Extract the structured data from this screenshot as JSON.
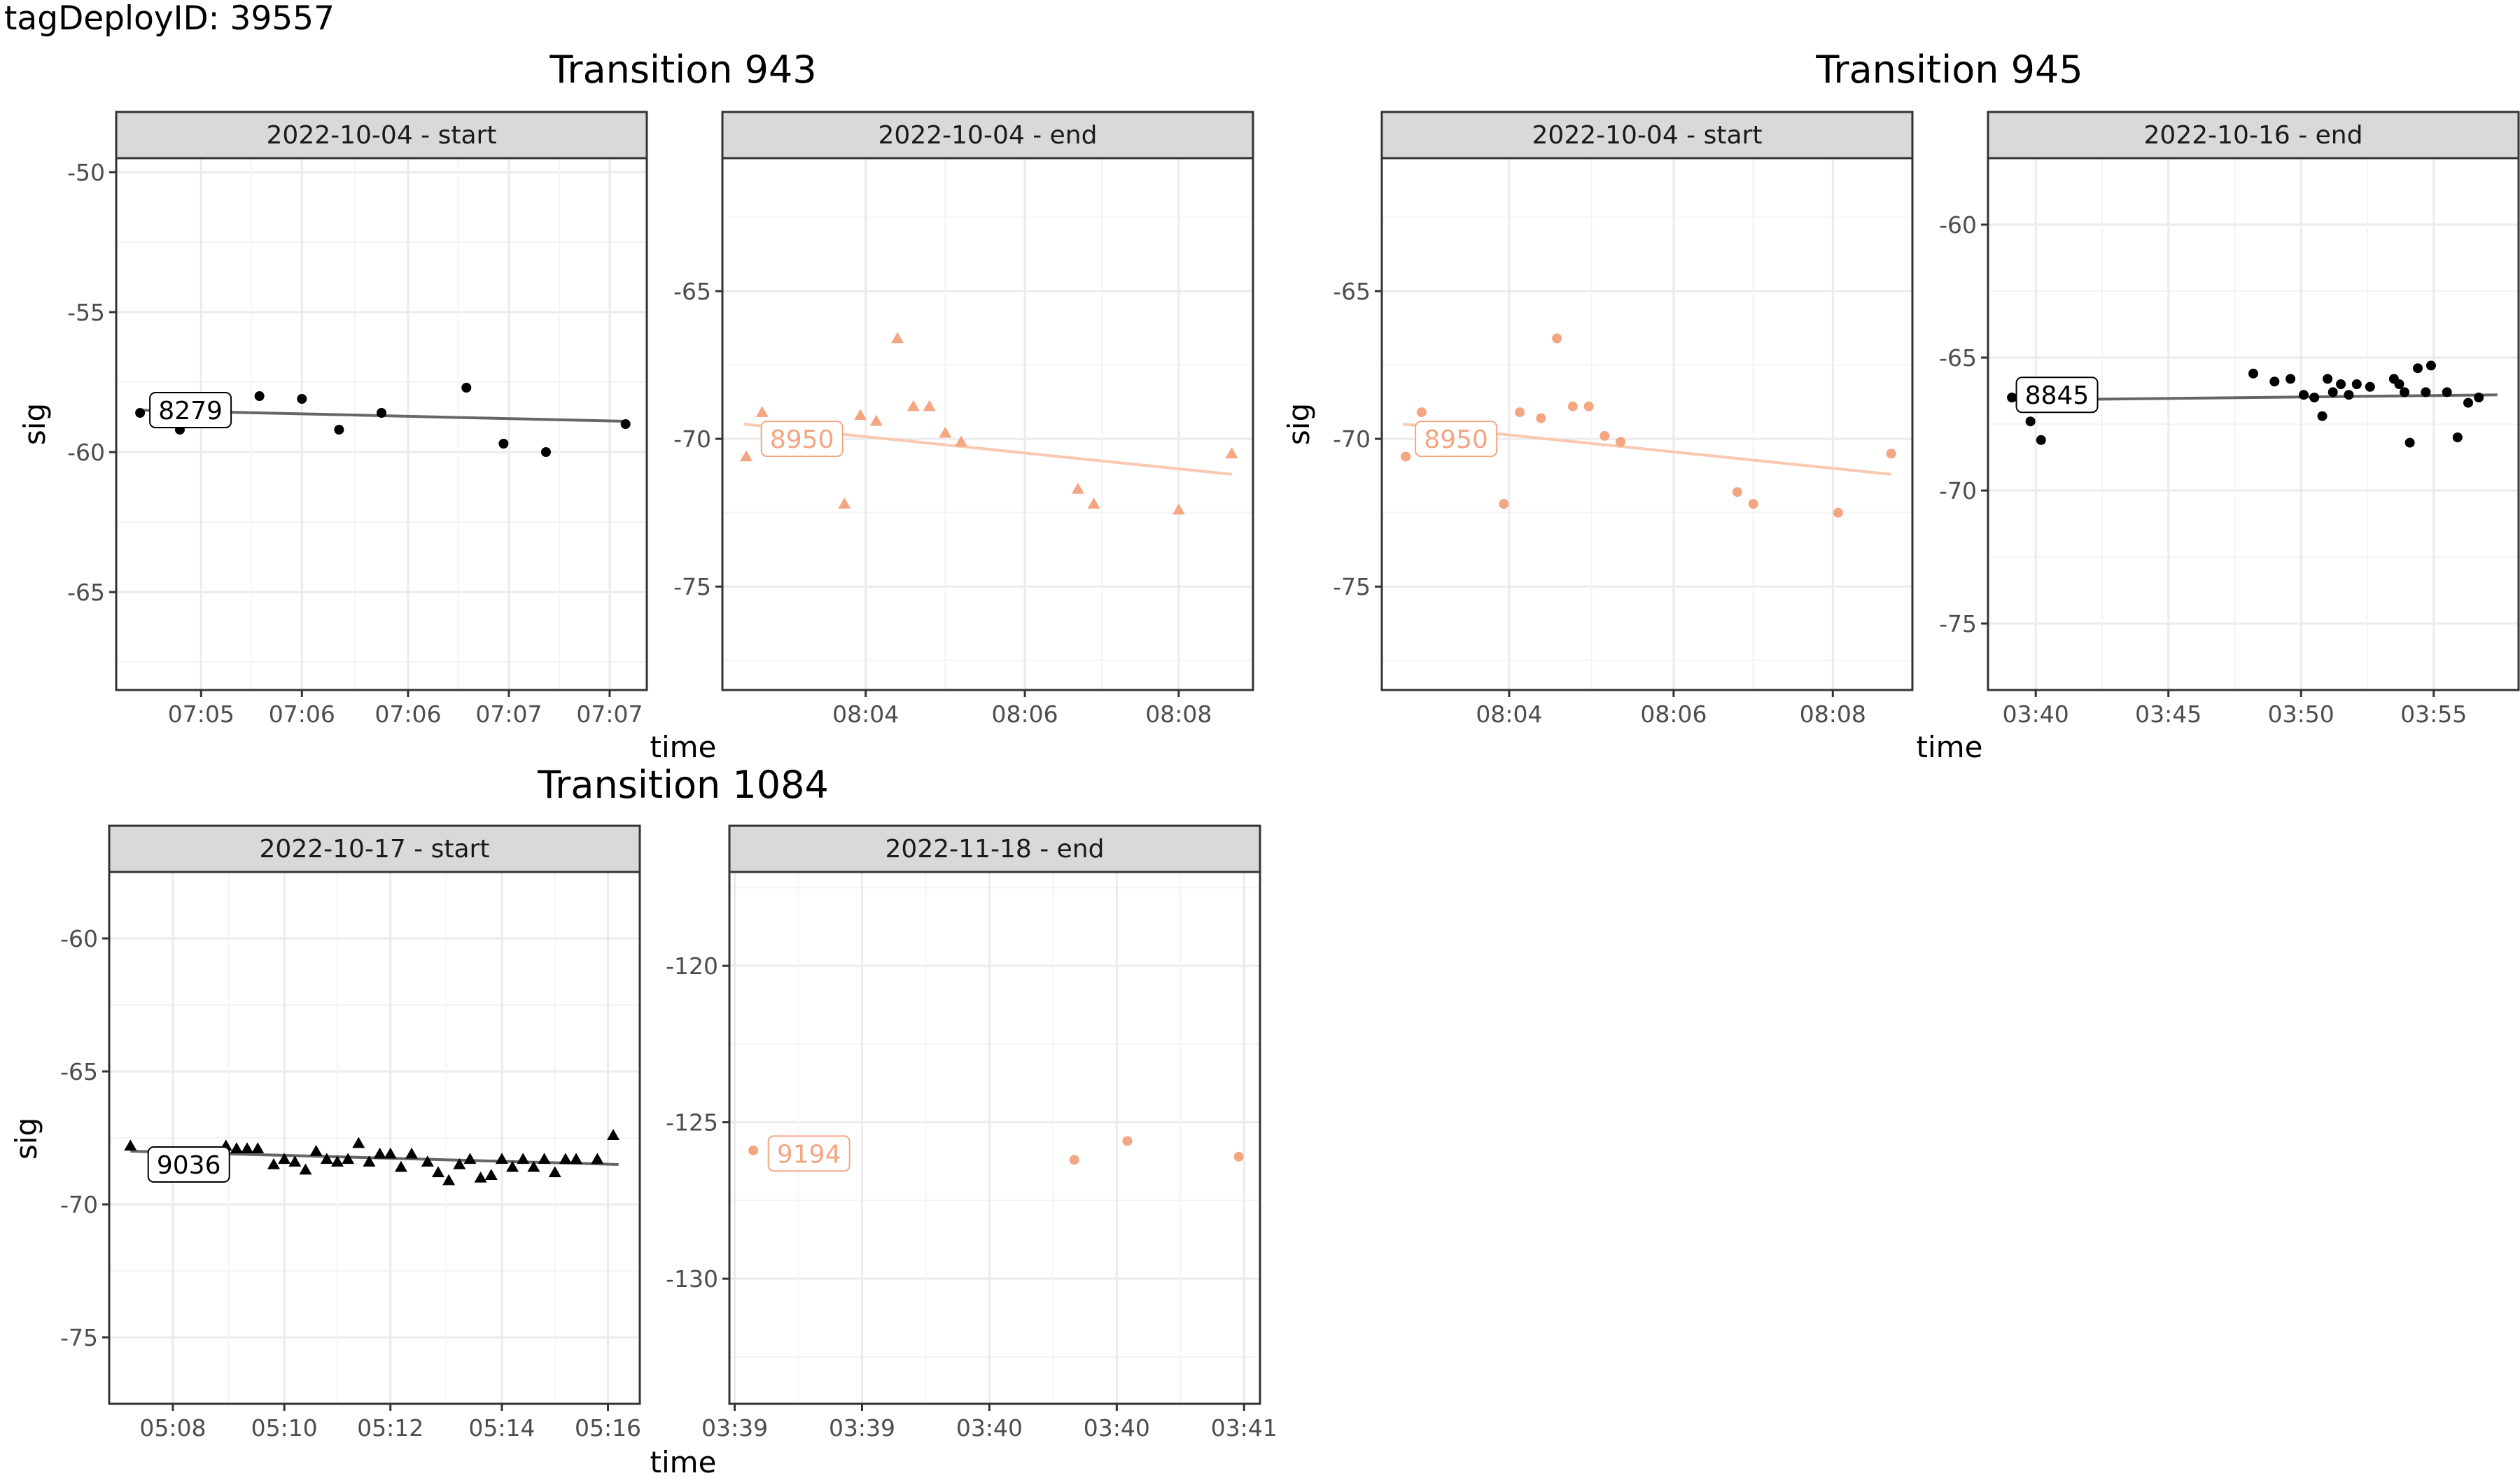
{
  "header": {
    "title": "tagDeployID: 39557"
  },
  "colors": {
    "black": "#000000",
    "orange": "#f4a582",
    "orange_line": "#f8c8b0",
    "strip_bg": "#d9d9d9",
    "grid": "#ebebeb"
  },
  "chart_data": [
    {
      "type": "scatter",
      "group_title": "Transition 943",
      "ylabel": "sig",
      "xlabel": "time",
      "panels": [
        {
          "strip": "2022-10-04 - start",
          "color": "black",
          "shape": "circle",
          "xlim": [
            0,
            100
          ],
          "ylim": [
            -68.5,
            -49.5
          ],
          "x_ticks": [
            {
              "x": 16,
              "label": "07:05"
            },
            {
              "x": 35,
              "label": "07:06"
            },
            {
              "x": 55,
              "label": "07:06"
            },
            {
              "x": 74,
              "label": "07:07"
            },
            {
              "x": 93,
              "label": "07:07"
            }
          ],
          "y_ticks": [
            -50,
            -55,
            -60,
            -65
          ],
          "points": [
            [
              4.5,
              -58.6
            ],
            [
              12,
              -59.2
            ],
            [
              27,
              -58.0
            ],
            [
              35,
              -58.1
            ],
            [
              42,
              -59.2
            ],
            [
              50,
              -58.6
            ],
            [
              66,
              -57.7
            ],
            [
              73,
              -59.7
            ],
            [
              81,
              -60.0
            ],
            [
              96,
              -59.0
            ]
          ],
          "trend": [
            [
              4,
              -58.5
            ],
            [
              96,
              -58.9
            ]
          ],
          "label": "8279",
          "label_at": [
            14,
            -58.5
          ]
        },
        {
          "strip": "2022-10-04 - end",
          "color": "orange",
          "shape": "triangle",
          "xlim": [
            0,
            100
          ],
          "ylim": [
            -78.5,
            -60.5
          ],
          "x_ticks": [
            {
              "x": 27,
              "label": "08:04"
            },
            {
              "x": 57,
              "label": "08:06"
            },
            {
              "x": 86,
              "label": "08:08"
            }
          ],
          "y_ticks": [
            -65,
            -70,
            -75
          ],
          "points": [
            [
              4.5,
              -70.6
            ],
            [
              7.5,
              -69.1
            ],
            [
              23,
              -72.2
            ],
            [
              26,
              -69.2
            ],
            [
              29,
              -69.4
            ],
            [
              33,
              -66.6
            ],
            [
              36,
              -68.9
            ],
            [
              39,
              -68.9
            ],
            [
              42,
              -69.8
            ],
            [
              45,
              -70.1
            ],
            [
              67,
              -71.7
            ],
            [
              70,
              -72.2
            ],
            [
              86,
              -72.4
            ],
            [
              96,
              -70.5
            ]
          ],
          "trend": [
            [
              4,
              -69.5
            ],
            [
              96,
              -71.2
            ]
          ],
          "label": "8950",
          "label_at": [
            15,
            -70.0
          ]
        }
      ]
    },
    {
      "type": "scatter",
      "group_title": "Transition 945",
      "ylabel": "sig",
      "xlabel": "time",
      "panels": [
        {
          "strip": "2022-10-04 - start",
          "color": "orange",
          "shape": "circle",
          "xlim": [
            0,
            100
          ],
          "ylim": [
            -78.5,
            -60.5
          ],
          "x_ticks": [
            {
              "x": 24,
              "label": "08:04"
            },
            {
              "x": 55,
              "label": "08:06"
            },
            {
              "x": 85,
              "label": "08:08"
            }
          ],
          "y_ticks": [
            -65,
            -70,
            -75
          ],
          "points": [
            [
              4.5,
              -70.6
            ],
            [
              7.5,
              -69.1
            ],
            [
              23,
              -72.2
            ],
            [
              26,
              -69.1
            ],
            [
              30,
              -69.3
            ],
            [
              33,
              -66.6
            ],
            [
              36,
              -68.9
            ],
            [
              39,
              -68.9
            ],
            [
              42,
              -69.9
            ],
            [
              45,
              -70.1
            ],
            [
              67,
              -71.8
            ],
            [
              70,
              -72.2
            ],
            [
              86,
              -72.5
            ],
            [
              96,
              -70.5
            ]
          ],
          "trend": [
            [
              4,
              -69.5
            ],
            [
              96,
              -71.2
            ]
          ],
          "label": "8950",
          "label_at": [
            14,
            -70.0
          ]
        },
        {
          "strip": "2022-10-16 - end",
          "color": "black",
          "shape": "circle",
          "xlim": [
            0,
            100
          ],
          "ylim": [
            -77.5,
            -57.5
          ],
          "x_ticks": [
            {
              "x": 9,
              "label": "03:40"
            },
            {
              "x": 34,
              "label": "03:45"
            },
            {
              "x": 59,
              "label": "03:50"
            },
            {
              "x": 84,
              "label": "03:55"
            }
          ],
          "y_ticks": [
            -60,
            -65,
            -70,
            -75
          ],
          "points": [
            [
              4.5,
              -66.5
            ],
            [
              8,
              -67.4
            ],
            [
              10,
              -68.1
            ],
            [
              50,
              -65.6
            ],
            [
              54,
              -65.9
            ],
            [
              57,
              -65.8
            ],
            [
              59.5,
              -66.4
            ],
            [
              61.5,
              -66.5
            ],
            [
              63,
              -67.2
            ],
            [
              64,
              -65.8
            ],
            [
              65,
              -66.3
            ],
            [
              66.5,
              -66.0
            ],
            [
              68,
              -66.4
            ],
            [
              69.5,
              -66.0
            ],
            [
              72,
              -66.1
            ],
            [
              76.5,
              -65.8
            ],
            [
              77.5,
              -66.0
            ],
            [
              78.5,
              -66.3
            ],
            [
              79.5,
              -68.2
            ],
            [
              81,
              -65.4
            ],
            [
              82.5,
              -66.3
            ],
            [
              83.5,
              -65.3
            ],
            [
              86.5,
              -66.3
            ],
            [
              88.5,
              -68.0
            ],
            [
              90.5,
              -66.7
            ],
            [
              92.5,
              -66.5
            ]
          ],
          "trend": [
            [
              4,
              -66.6
            ],
            [
              96,
              -66.4
            ]
          ],
          "label": "8845",
          "label_at": [
            13,
            -66.4
          ]
        }
      ]
    },
    {
      "type": "scatter",
      "group_title": "Transition 1084",
      "ylabel": "sig",
      "xlabel": "time",
      "panels": [
        {
          "strip": "2022-10-17 - start",
          "color": "black",
          "shape": "triangle",
          "xlim": [
            0,
            100
          ],
          "ylim": [
            -77.5,
            -57.5
          ],
          "x_ticks": [
            {
              "x": 12,
              "label": "05:08"
            },
            {
              "x": 33,
              "label": "05:10"
            },
            {
              "x": 53,
              "label": "05:12"
            },
            {
              "x": 74,
              "label": "05:14"
            },
            {
              "x": 94,
              "label": "05:16"
            }
          ],
          "y_ticks": [
            -60,
            -65,
            -70,
            -75
          ],
          "points": [
            [
              4,
              -67.8
            ],
            [
              9,
              -68.1
            ],
            [
              12,
              -68.2
            ],
            [
              20,
              -68.1
            ],
            [
              22,
              -67.8
            ],
            [
              24,
              -67.9
            ],
            [
              26,
              -67.9
            ],
            [
              28,
              -67.9
            ],
            [
              31,
              -68.5
            ],
            [
              33,
              -68.3
            ],
            [
              35,
              -68.4
            ],
            [
              37,
              -68.7
            ],
            [
              39,
              -68.0
            ],
            [
              41,
              -68.3
            ],
            [
              43,
              -68.4
            ],
            [
              45,
              -68.3
            ],
            [
              47,
              -67.7
            ],
            [
              49,
              -68.4
            ],
            [
              51,
              -68.1
            ],
            [
              53,
              -68.1
            ],
            [
              55,
              -68.6
            ],
            [
              57,
              -68.1
            ],
            [
              60,
              -68.4
            ],
            [
              62,
              -68.8
            ],
            [
              64,
              -69.1
            ],
            [
              66,
              -68.5
            ],
            [
              68,
              -68.3
            ],
            [
              70,
              -69.0
            ],
            [
              72,
              -68.9
            ],
            [
              74,
              -68.3
            ],
            [
              76,
              -68.6
            ],
            [
              78,
              -68.3
            ],
            [
              80,
              -68.6
            ],
            [
              82,
              -68.3
            ],
            [
              84,
              -68.8
            ],
            [
              86,
              -68.3
            ],
            [
              88,
              -68.3
            ],
            [
              92,
              -68.3
            ],
            [
              95,
              -67.4
            ]
          ],
          "trend": [
            [
              4,
              -68.0
            ],
            [
              96,
              -68.5
            ]
          ],
          "label": "9036",
          "label_at": [
            15,
            -68.5
          ]
        },
        {
          "strip": "2022-11-18 - end",
          "color": "orange",
          "shape": "circle",
          "xlim": [
            0,
            100
          ],
          "ylim": [
            -134,
            -117
          ],
          "x_ticks": [
            {
              "x": 1,
              "label": "03:39"
            },
            {
              "x": 25,
              "label": "03:39"
            },
            {
              "x": 49,
              "label": "03:40"
            },
            {
              "x": 73,
              "label": "03:40"
            },
            {
              "x": 97,
              "label": "03:41"
            }
          ],
          "y_ticks": [
            -120,
            -125,
            -130
          ],
          "points": [
            [
              4.5,
              -125.9
            ],
            [
              65,
              -126.2
            ],
            [
              75,
              -125.6
            ],
            [
              96,
              -126.1
            ]
          ],
          "trend": [],
          "label": "9194",
          "label_at": [
            15,
            -126.0
          ]
        }
      ]
    }
  ]
}
